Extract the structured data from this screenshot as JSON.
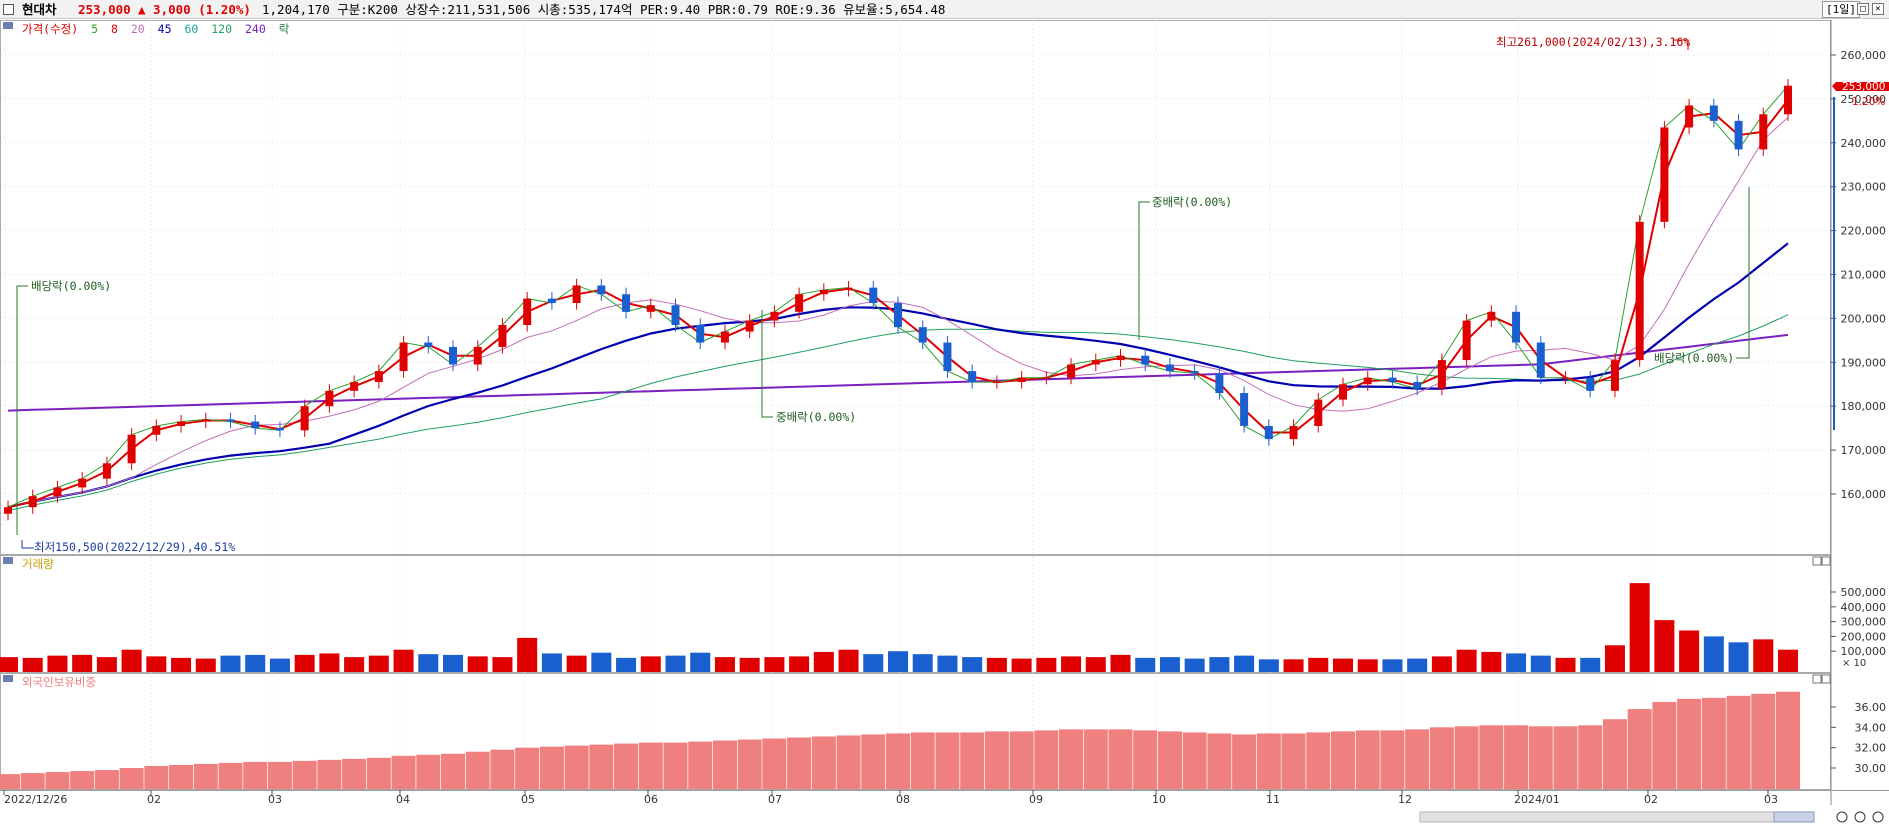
{
  "header": {
    "stock_name": "현대차",
    "price": "253,000",
    "change": "▲ 3,000",
    "change_pct": "(1.20%)",
    "stats": "1,204,170  구분:K200 상장수:211,531,506 시총:535,174억 PER:9.40 PBR:0.79 ROE:9.36 유보율:5,654.48",
    "period": "[1일]"
  },
  "colors": {
    "up": "#e00000",
    "down": "#1a5fd0",
    "ma5": "#2ca02c",
    "ma20": "#e00000",
    "ma60": "#c070b8",
    "ma120": "#0000b0",
    "ma240": "#20a060",
    "ma_long": "#7a20c0",
    "foreign": "#f07f80"
  },
  "legends": {
    "price": [
      "가격(수정)",
      "5",
      "8",
      "20",
      "45",
      "60",
      "120",
      "240",
      "락"
    ],
    "volume": "거래량",
    "foreign": "외국인보유비중",
    "volume_unit": "× 10"
  },
  "chart_data": [
    {
      "type": "candlestick",
      "title": "",
      "x_tick_labels": [
        "2022/12/26",
        "02",
        "03",
        "04",
        "05",
        "06",
        "07",
        "08",
        "09",
        "10",
        "11",
        "12",
        "2024/01",
        "02",
        "03"
      ],
      "ylim": [
        150000,
        265000
      ],
      "y_ticks": [
        160000,
        170000,
        180000,
        190000,
        200000,
        210000,
        220000,
        230000,
        240000,
        250000,
        260000
      ],
      "y_tick_labels": [
        "160,000",
        "170,000",
        "180,000",
        "190,000",
        "200,000",
        "210,000",
        "220,000",
        "230,000",
        "240,000",
        "250,000",
        "260,000"
      ],
      "current_price": 253000,
      "current_price_label": "253,000",
      "current_change_label": "1.20%",
      "close_series": [
        157000,
        159500,
        161500,
        163500,
        167000,
        173500,
        175500,
        176500,
        177000,
        176500,
        175000,
        174500,
        180000,
        183500,
        185500,
        188000,
        194500,
        193500,
        189500,
        193500,
        198500,
        204500,
        203500,
        207500,
        205500,
        201500,
        203000,
        198500,
        194500,
        197000,
        199500,
        201500,
        205500,
        206500,
        207000,
        203500,
        198000,
        194500,
        188000,
        185500,
        185500,
        186500,
        186500,
        189500,
        190500,
        191500,
        189500,
        188000,
        187500,
        183000,
        175500,
        172500,
        175500,
        181500,
        185000,
        186500,
        185500,
        184000,
        190500,
        199500,
        201500,
        194500,
        186500,
        186500,
        183500,
        190500,
        222000,
        243500,
        248500,
        245000,
        238500,
        246500,
        253000
      ],
      "annotations": [
        {
          "text": "최고261,000(2024/02/13),3.16%",
          "type": "high"
        },
        {
          "text": "최저150,500(2022/12/29),40.51%",
          "type": "low"
        },
        {
          "text": "배당락(0.00%)",
          "type": "event"
        },
        {
          "text": "중배락(0.00%)",
          "type": "event"
        },
        {
          "text": "중배락(0.00%)",
          "type": "event"
        },
        {
          "text": "배당락(0.00%)",
          "type": "event"
        }
      ]
    },
    {
      "type": "bar",
      "title": "",
      "name": "거래량",
      "ylim": [
        0,
        600000
      ],
      "y_ticks": [
        100000,
        200000,
        300000,
        400000,
        500000
      ],
      "y_tick_labels": [
        "100,000",
        "200,000",
        "300,000",
        "400,000",
        "500,000"
      ],
      "unit_label": "× 10",
      "values": [
        60000,
        55000,
        70000,
        75000,
        60000,
        110000,
        65000,
        55000,
        50000,
        70000,
        75000,
        50000,
        75000,
        85000,
        60000,
        70000,
        110000,
        80000,
        75000,
        65000,
        60000,
        190000,
        85000,
        70000,
        90000,
        55000,
        65000,
        70000,
        90000,
        60000,
        55000,
        60000,
        65000,
        95000,
        110000,
        80000,
        100000,
        80000,
        70000,
        60000,
        55000,
        50000,
        55000,
        65000,
        60000,
        75000,
        55000,
        60000,
        50000,
        60000,
        70000,
        45000,
        45000,
        55000,
        50000,
        45000,
        45000,
        50000,
        65000,
        110000,
        95000,
        85000,
        70000,
        55000,
        55000,
        140000,
        560000,
        310000,
        240000,
        200000,
        160000,
        180000,
        110000
      ]
    },
    {
      "type": "bar",
      "title": "",
      "name": "외국인보유비중",
      "ylim": [
        28,
        39
      ],
      "y_ticks": [
        30,
        32,
        34,
        36
      ],
      "y_tick_labels": [
        "30.00",
        "32.00",
        "34.00",
        "36.00"
      ],
      "values": [
        29.4,
        29.5,
        29.6,
        29.7,
        29.8,
        30.0,
        30.2,
        30.3,
        30.4,
        30.5,
        30.6,
        30.6,
        30.7,
        30.8,
        30.9,
        31.0,
        31.2,
        31.3,
        31.4,
        31.6,
        31.8,
        32.0,
        32.1,
        32.2,
        32.3,
        32.4,
        32.5,
        32.5,
        32.6,
        32.7,
        32.8,
        32.9,
        33.0,
        33.1,
        33.2,
        33.3,
        33.4,
        33.5,
        33.5,
        33.5,
        33.6,
        33.6,
        33.7,
        33.8,
        33.8,
        33.8,
        33.7,
        33.6,
        33.5,
        33.4,
        33.3,
        33.4,
        33.4,
        33.5,
        33.6,
        33.7,
        33.7,
        33.8,
        34.0,
        34.1,
        34.2,
        34.2,
        34.1,
        34.1,
        34.2,
        34.8,
        35.8,
        36.5,
        36.8,
        36.9,
        37.1,
        37.3,
        37.5
      ]
    }
  ]
}
